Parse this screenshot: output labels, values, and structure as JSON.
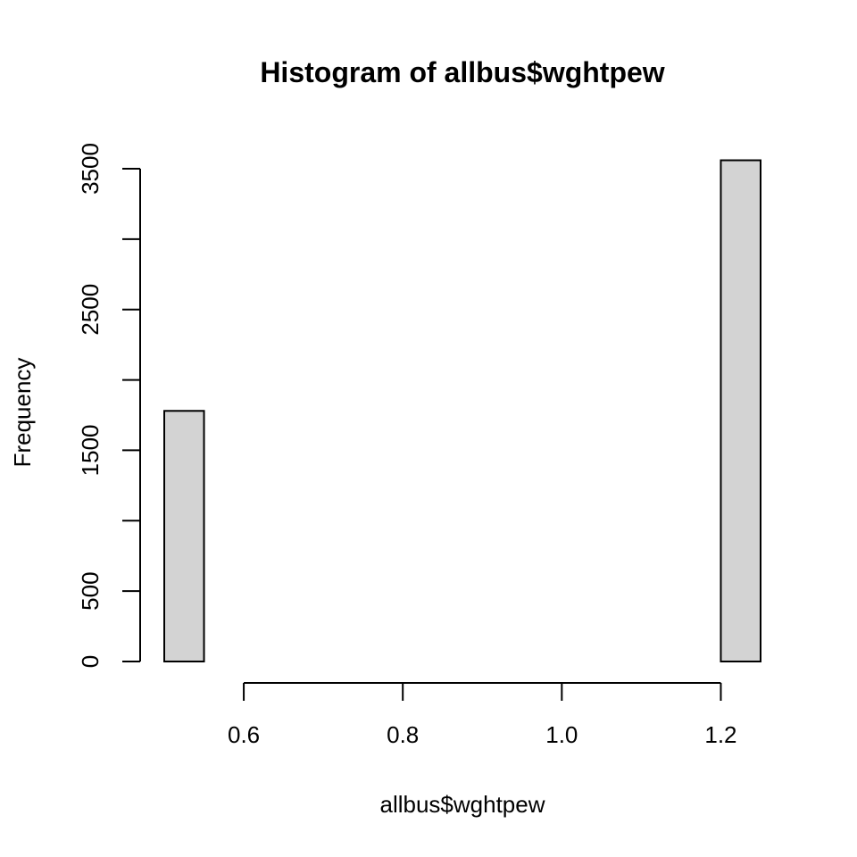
{
  "chart_data": {
    "type": "bar",
    "subtype": "histogram",
    "title": "Histogram of allbus$wghtpew",
    "xlabel": "allbus$wghtpew",
    "ylabel": "Frequency",
    "bins": [
      {
        "start": 0.5,
        "end": 0.55,
        "count": 1780
      },
      {
        "start": 0.55,
        "end": 0.6,
        "count": 0
      },
      {
        "start": 0.6,
        "end": 0.65,
        "count": 0
      },
      {
        "start": 0.65,
        "end": 0.7,
        "count": 0
      },
      {
        "start": 0.7,
        "end": 0.75,
        "count": 0
      },
      {
        "start": 0.75,
        "end": 0.8,
        "count": 0
      },
      {
        "start": 0.8,
        "end": 0.85,
        "count": 0
      },
      {
        "start": 0.85,
        "end": 0.9,
        "count": 0
      },
      {
        "start": 0.9,
        "end": 0.95,
        "count": 0
      },
      {
        "start": 0.95,
        "end": 1.0,
        "count": 0
      },
      {
        "start": 1.0,
        "end": 1.05,
        "count": 0
      },
      {
        "start": 1.05,
        "end": 1.1,
        "count": 0
      },
      {
        "start": 1.1,
        "end": 1.15,
        "count": 0
      },
      {
        "start": 1.15,
        "end": 1.2,
        "count": 0
      },
      {
        "start": 1.2,
        "end": 1.25,
        "count": 3560
      }
    ],
    "xlim": [
      0.5,
      1.25
    ],
    "ylim": [
      0,
      3500
    ],
    "x_ticks": [
      0.6,
      0.8,
      1.0,
      1.2
    ],
    "x_tick_labels": [
      "0.6",
      "0.8",
      "1.0",
      "1.2"
    ],
    "y_ticks": [
      0,
      500,
      1000,
      1500,
      2000,
      2500,
      3000,
      3500
    ],
    "y_tick_labels": [
      "0",
      "500",
      "",
      "1500",
      "",
      "2500",
      "",
      "3500"
    ],
    "bar_fill": "#d3d3d3",
    "bar_stroke": "#000000",
    "grid": false,
    "legend": "none"
  }
}
